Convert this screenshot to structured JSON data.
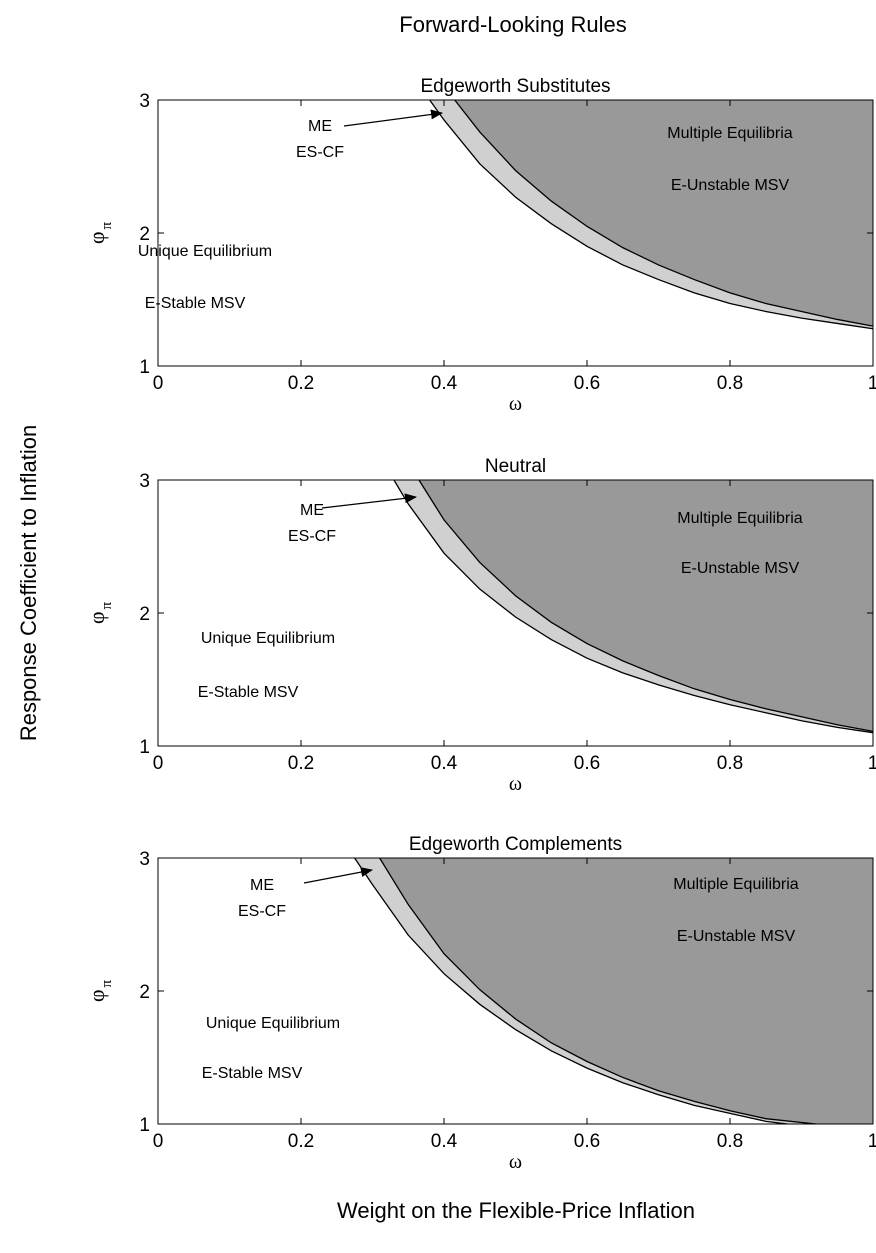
{
  "figure": {
    "title": "Forward-Looking Rules",
    "ylabel": "Response Coefficient to Inflation",
    "xlabel": "Weight on the Flexible-Price Inflation",
    "colors": {
      "multiple_equilibria": "#999999",
      "me_es_cf": "#d0d0d0",
      "unique": "#ffffff",
      "lines": "#000000"
    }
  },
  "chart_data": [
    {
      "type": "area",
      "title": "Edgeworth Substitutes",
      "xlabel": "ω",
      "ylabel": "φ",
      "ylabel_sub": "π",
      "xlim": [
        0,
        1
      ],
      "ylim": [
        1,
        3
      ],
      "xticks": [
        "0",
        "0.2",
        "0.4",
        "0.6",
        "0.8",
        "1"
      ],
      "yticks": [
        "1",
        "2",
        "3"
      ],
      "grid": false,
      "region_boundaries": [
        {
          "name": "Unique Equilibrium / ME ES-CF",
          "x": [
            0.38,
            0.4,
            0.45,
            0.5,
            0.55,
            0.6,
            0.65,
            0.7,
            0.75,
            0.8,
            0.85,
            0.9,
            0.95,
            1.0
          ],
          "y": [
            3.0,
            2.85,
            2.52,
            2.27,
            2.07,
            1.9,
            1.76,
            1.65,
            1.55,
            1.47,
            1.41,
            1.36,
            1.32,
            1.28
          ]
        },
        {
          "name": "ME ES-CF / Multiple Equilibria",
          "x": [
            0.415,
            0.45,
            0.5,
            0.55,
            0.6,
            0.65,
            0.7,
            0.75,
            0.8,
            0.85,
            0.9,
            0.95,
            1.0
          ],
          "y": [
            3.0,
            2.76,
            2.47,
            2.24,
            2.05,
            1.89,
            1.76,
            1.65,
            1.55,
            1.47,
            1.41,
            1.35,
            1.3
          ]
        }
      ],
      "annotations": {
        "unique": "Unique Equilibrium",
        "stable": "E-Stable MSV",
        "multiple": "Multiple Equilibria",
        "unstable": "E-Unstable MSV",
        "me": "ME",
        "escf": "ES-CF"
      }
    },
    {
      "type": "area",
      "title": "Neutral",
      "xlabel": "ω",
      "ylabel": "φ",
      "ylabel_sub": "π",
      "xlim": [
        0,
        1
      ],
      "ylim": [
        1,
        3
      ],
      "xticks": [
        "0",
        "0.2",
        "0.4",
        "0.6",
        "0.8",
        "1"
      ],
      "yticks": [
        "1",
        "2",
        "3"
      ],
      "grid": false,
      "region_boundaries": [
        {
          "name": "Unique Equilibrium / ME ES-CF",
          "x": [
            0.33,
            0.35,
            0.4,
            0.45,
            0.5,
            0.55,
            0.6,
            0.65,
            0.7,
            0.75,
            0.8,
            0.85,
            0.9,
            0.95,
            1.0
          ],
          "y": [
            3.0,
            2.82,
            2.45,
            2.18,
            1.97,
            1.8,
            1.66,
            1.55,
            1.46,
            1.38,
            1.31,
            1.25,
            1.19,
            1.14,
            1.1
          ]
        },
        {
          "name": "ME ES-CF / Multiple Equilibria",
          "x": [
            0.365,
            0.4,
            0.45,
            0.5,
            0.55,
            0.6,
            0.65,
            0.7,
            0.75,
            0.8,
            0.85,
            0.9,
            0.95,
            1.0
          ],
          "y": [
            3.0,
            2.7,
            2.38,
            2.13,
            1.93,
            1.77,
            1.64,
            1.53,
            1.43,
            1.35,
            1.28,
            1.22,
            1.16,
            1.11
          ]
        }
      ],
      "annotations": {
        "unique": "Unique Equilibrium",
        "stable": "E-Stable MSV",
        "multiple": "Multiple Equilibria",
        "unstable": "E-Unstable MSV",
        "me": "ME",
        "escf": "ES-CF"
      }
    },
    {
      "type": "area",
      "title": "Edgeworth Complements",
      "xlabel": "ω",
      "ylabel": "φ",
      "ylabel_sub": "π",
      "xlim": [
        0,
        1
      ],
      "ylim": [
        1,
        3
      ],
      "xticks": [
        "0",
        "0.2",
        "0.4",
        "0.6",
        "0.8",
        "1"
      ],
      "yticks": [
        "1",
        "2",
        "3"
      ],
      "grid": false,
      "region_boundaries": [
        {
          "name": "Unique Equilibrium / ME ES-CF",
          "x": [
            0.275,
            0.3,
            0.35,
            0.4,
            0.45,
            0.5,
            0.55,
            0.6,
            0.65,
            0.7,
            0.75,
            0.8,
            0.85,
            0.88
          ],
          "y": [
            3.0,
            2.8,
            2.42,
            2.13,
            1.9,
            1.71,
            1.55,
            1.42,
            1.31,
            1.22,
            1.14,
            1.08,
            1.02,
            1.0
          ]
        },
        {
          "name": "ME ES-CF / Multiple Equilibria",
          "x": [
            0.31,
            0.35,
            0.4,
            0.45,
            0.5,
            0.55,
            0.6,
            0.65,
            0.7,
            0.75,
            0.8,
            0.85,
            0.92
          ],
          "y": [
            3.0,
            2.65,
            2.28,
            2.01,
            1.79,
            1.61,
            1.47,
            1.35,
            1.25,
            1.17,
            1.1,
            1.04,
            1.0
          ]
        }
      ],
      "annotations": {
        "unique": "Unique Equilibrium",
        "stable": "E-Stable MSV",
        "multiple": "Multiple Equilibria",
        "unstable": "E-Unstable MSV",
        "me": "ME",
        "escf": "ES-CF"
      }
    }
  ]
}
